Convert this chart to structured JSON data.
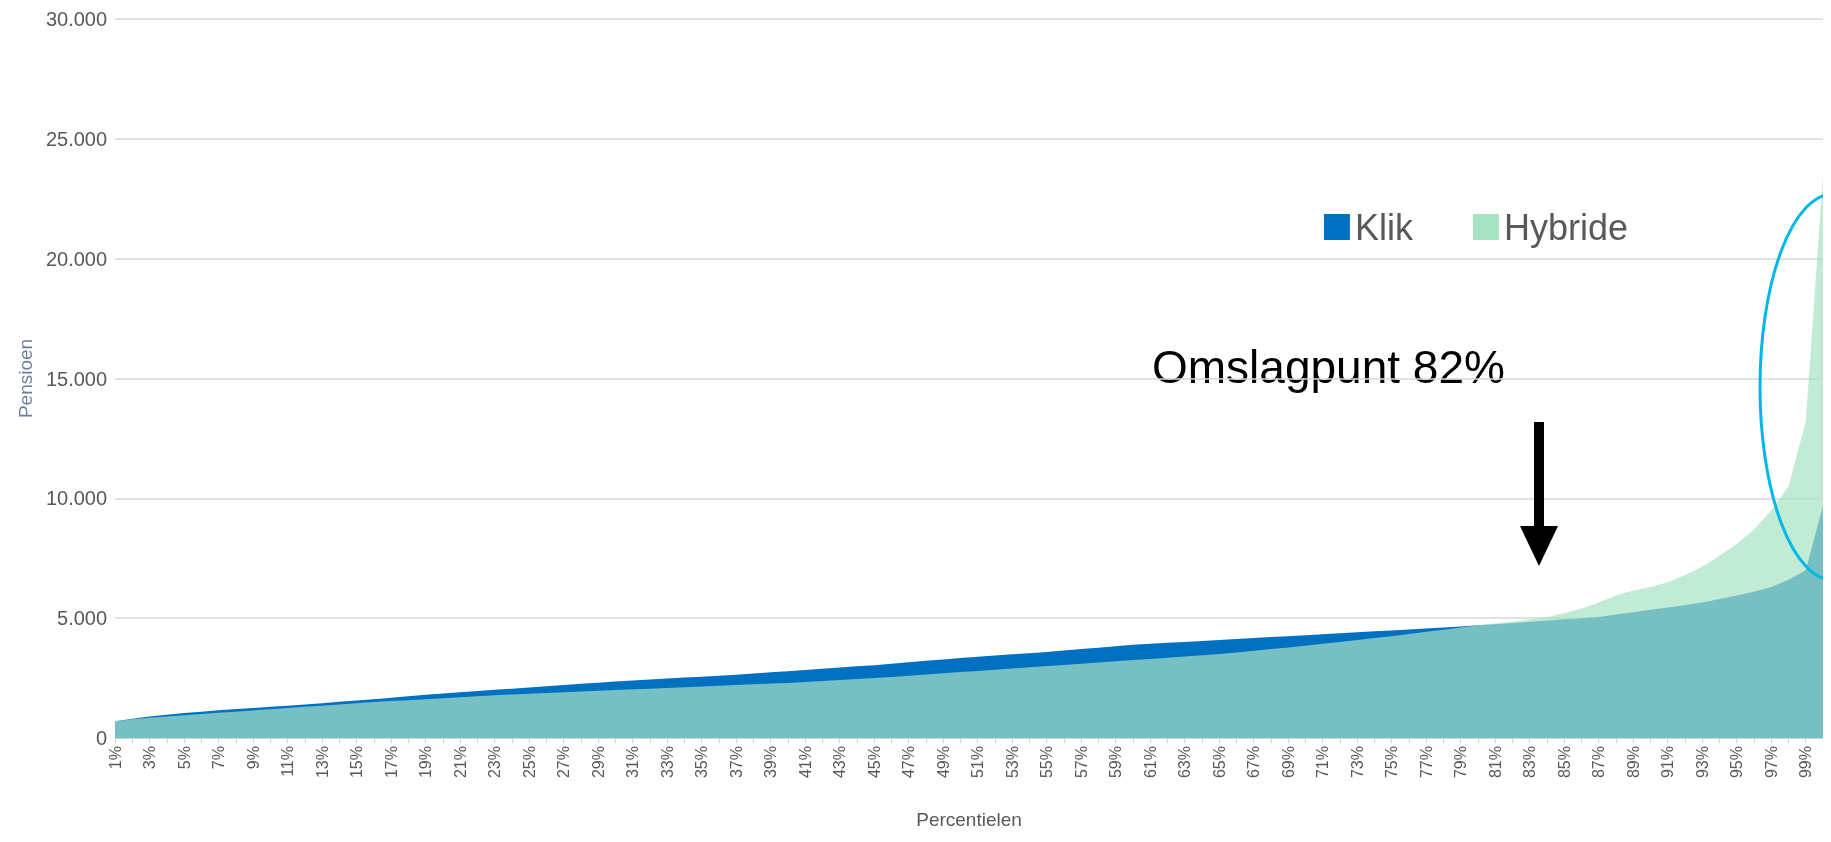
{
  "chart_data": {
    "type": "area",
    "xlabel": "Percentielen",
    "ylabel": "Pensioen",
    "categories": [
      "1%",
      null,
      "3%",
      null,
      "5%",
      null,
      "7%",
      null,
      "9%",
      null,
      "11%",
      null,
      "13%",
      null,
      "15%",
      null,
      "17%",
      null,
      "19%",
      null,
      "21%",
      null,
      "23%",
      null,
      "25%",
      null,
      "27%",
      null,
      "29%",
      null,
      "31%",
      null,
      "33%",
      null,
      "35%",
      null,
      "37%",
      null,
      "39%",
      null,
      "41%",
      null,
      "43%",
      null,
      "45%",
      null,
      "47%",
      null,
      "49%",
      null,
      "51%",
      null,
      "53%",
      null,
      "55%",
      null,
      "57%",
      null,
      "59%",
      null,
      "61%",
      null,
      "63%",
      null,
      "65%",
      null,
      "67%",
      null,
      "69%",
      null,
      "71%",
      null,
      "73%",
      null,
      "75%",
      null,
      "77%",
      null,
      "79%",
      null,
      "81%",
      null,
      "83%",
      null,
      "85%",
      null,
      "87%",
      null,
      "89%",
      null,
      "91%",
      null,
      "93%",
      null,
      "95%",
      null,
      "97%",
      null,
      "99%",
      null
    ],
    "series": [
      {
        "name": "Klik",
        "color": "#0070c0",
        "values": [
          700,
          800,
          900,
          970,
          1040,
          1100,
          1160,
          1210,
          1250,
          1300,
          1350,
          1400,
          1450,
          1510,
          1560,
          1620,
          1680,
          1740,
          1800,
          1860,
          1910,
          1960,
          2010,
          2060,
          2110,
          2160,
          2210,
          2260,
          2310,
          2360,
          2400,
          2440,
          2480,
          2520,
          2560,
          2600,
          2640,
          2690,
          2740,
          2790,
          2840,
          2890,
          2940,
          2990,
          3040,
          3100,
          3160,
          3220,
          3280,
          3340,
          3390,
          3440,
          3490,
          3540,
          3590,
          3650,
          3710,
          3770,
          3830,
          3890,
          3930,
          3970,
          4010,
          4050,
          4090,
          4130,
          4170,
          4210,
          4250,
          4290,
          4330,
          4370,
          4410,
          4450,
          4490,
          4530,
          4570,
          4610,
          4650,
          4700,
          4750,
          4800,
          4850,
          4900,
          4950,
          5000,
          5050,
          5150,
          5250,
          5350,
          5450,
          5550,
          5650,
          5800,
          5950,
          6100,
          6300,
          6600,
          7000,
          9700
        ]
      },
      {
        "name": "Hybride",
        "color": "#a8e2c5",
        "values": [
          700,
          780,
          850,
          900,
          950,
          1000,
          1050,
          1100,
          1150,
          1200,
          1250,
          1300,
          1350,
          1400,
          1450,
          1500,
          1540,
          1580,
          1620,
          1660,
          1700,
          1740,
          1780,
          1820,
          1850,
          1880,
          1910,
          1940,
          1970,
          2000,
          2030,
          2060,
          2090,
          2120,
          2150,
          2180,
          2210,
          2240,
          2270,
          2300,
          2340,
          2380,
          2420,
          2460,
          2500,
          2550,
          2600,
          2650,
          2700,
          2750,
          2800,
          2850,
          2900,
          2950,
          3000,
          3050,
          3100,
          3150,
          3200,
          3250,
          3300,
          3350,
          3400,
          3450,
          3500,
          3570,
          3640,
          3710,
          3780,
          3850,
          3930,
          4010,
          4090,
          4170,
          4250,
          4340,
          4430,
          4520,
          4610,
          4700,
          4780,
          4850,
          4950,
          5050,
          5200,
          5400,
          5650,
          5950,
          6150,
          6300,
          6500,
          6800,
          7150,
          7600,
          8100,
          8700,
          9500,
          10500,
          13200,
          23500
        ]
      }
    ],
    "ylim": [
      0,
      30000
    ],
    "yticks": [
      0,
      {
        "value": 5000,
        "label": "5.000"
      },
      {
        "value": 10000,
        "label": "10.000"
      },
      {
        "value": 15000,
        "label": "15.000"
      },
      {
        "value": 20000,
        "label": "20.000"
      },
      {
        "value": 25000,
        "label": "25.000"
      },
      {
        "value": 30000,
        "label": "30.000"
      }
    ],
    "grid": "y",
    "legend": "top right",
    "marker": "none",
    "annotations": [
      "Omslagpunt 82%"
    ]
  }
}
